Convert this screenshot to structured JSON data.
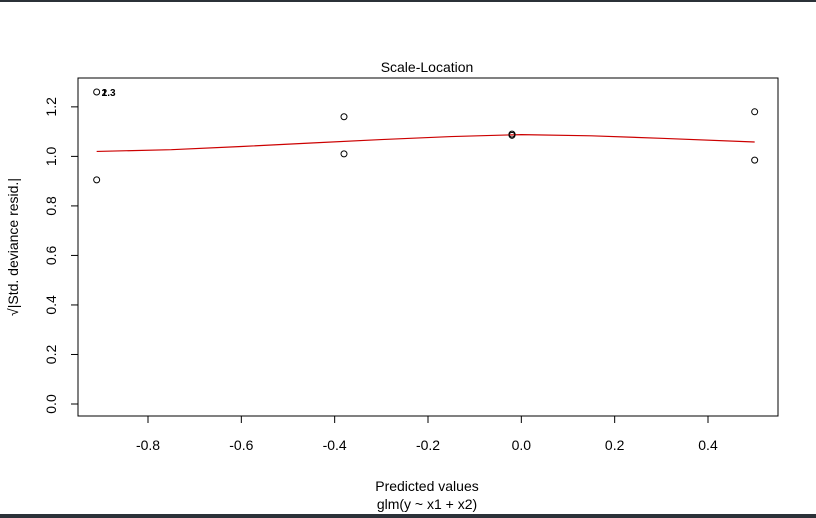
{
  "chart_data": {
    "type": "scatter",
    "title": "Scale-Location",
    "xlabel": "Predicted values",
    "sublabel": "glm(y ~ x1 + x2)",
    "ylabel": "√|Std. deviance resid.|",
    "xlim": [
      -0.95,
      0.55
    ],
    "ylim": [
      0.0,
      1.26
    ],
    "x_ticks": [
      -0.8,
      -0.6,
      -0.4,
      -0.2,
      0.0,
      0.2,
      0.4
    ],
    "x_tick_labels": [
      "-0.8",
      "-0.6",
      "-0.4",
      "-0.2",
      "0.0",
      "0.2",
      "0.4"
    ],
    "y_ticks": [
      0.0,
      0.2,
      0.4,
      0.6,
      0.8,
      1.0,
      1.2
    ],
    "y_tick_labels": [
      "0.0",
      "0.2",
      "0.4",
      "0.6",
      "0.8",
      "1.0",
      "1.2"
    ],
    "points": [
      {
        "x": -0.91,
        "y": 1.26
      },
      {
        "x": -0.91,
        "y": 0.905
      },
      {
        "x": -0.38,
        "y": 1.16
      },
      {
        "x": -0.38,
        "y": 1.01
      },
      {
        "x": -0.02,
        "y": 1.09
      },
      {
        "x": -0.02,
        "y": 1.085
      },
      {
        "x": 0.5,
        "y": 1.18
      },
      {
        "x": 0.5,
        "y": 0.985
      }
    ],
    "point_labels": [
      {
        "x": -0.91,
        "y": 1.26,
        "text": "2"
      },
      {
        "x": -0.91,
        "y": 1.26,
        "text": "1.3"
      }
    ],
    "smooth_line": {
      "color": "#cc0000",
      "x": [
        -0.91,
        -0.75,
        -0.6,
        -0.45,
        -0.3,
        -0.15,
        0.0,
        0.15,
        0.3,
        0.5
      ],
      "y": [
        1.02,
        1.027,
        1.04,
        1.054,
        1.068,
        1.08,
        1.088,
        1.083,
        1.073,
        1.058
      ]
    },
    "grid": false,
    "legend": "none"
  }
}
